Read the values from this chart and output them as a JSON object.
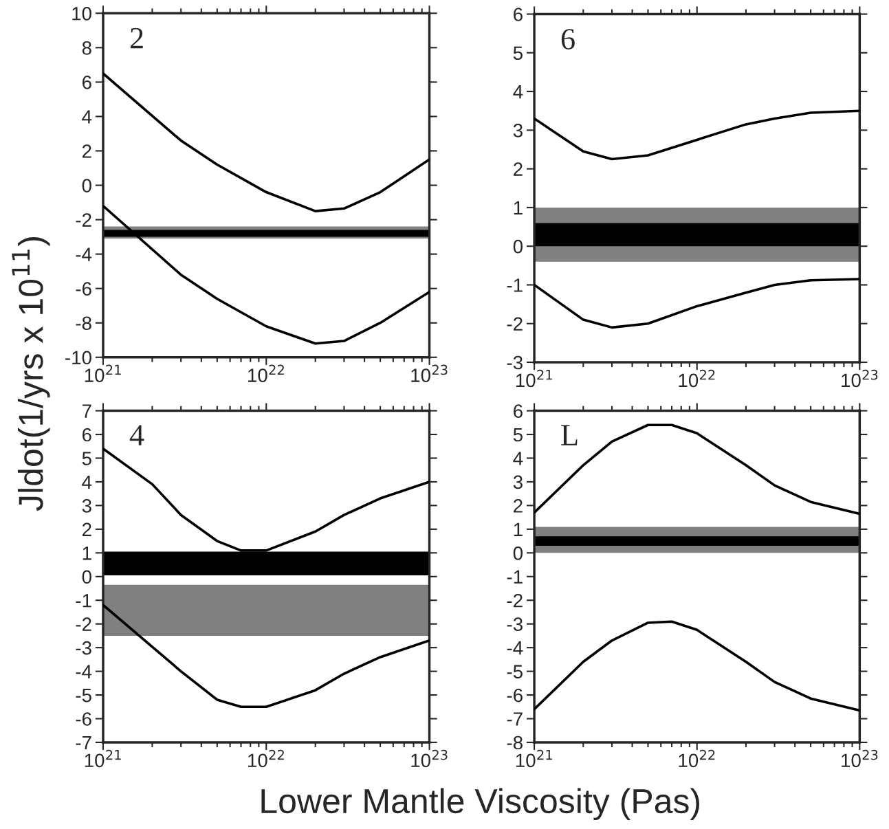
{
  "chart_data": [
    {
      "type": "line",
      "ylabel": "Jldot(1/yrs x 10$^{11}$)",
      "xlabel": "Lower Mantle Viscosity (Pas)",
      "annotations": [
        "2"
      ],
      "log": "x",
      "xlim": [
        1e+21,
        1e+23
      ],
      "xticks": [
        {
          "value": 1e+21,
          "label": "10$^{21}$"
        },
        {
          "value": 1e+22,
          "label": "10$^{22}$"
        },
        {
          "value": 1e+23,
          "label": "10$^{23}$"
        }
      ],
      "ylim": [
        -10,
        10
      ],
      "yticks": [
        -10,
        -8,
        -6,
        -4,
        -2,
        0,
        2,
        4,
        6,
        8,
        10
      ],
      "grid": false,
      "legend": false,
      "marker": "none",
      "line_style": "solid",
      "series": [
        {
          "color": "#000000",
          "x": [
            1e+21,
            3e+21,
            5e+21,
            1e+22,
            2e+22,
            3e+22,
            5e+22,
            1e+23
          ],
          "values": [
            6.5,
            2.6,
            1.2,
            -0.4,
            -1.5,
            -1.35,
            -0.4,
            1.5
          ]
        },
        {
          "color": "#000000",
          "x": [
            1e+21,
            3e+21,
            5e+21,
            1e+22,
            2e+22,
            3e+22,
            5e+22,
            1e+23
          ],
          "values": [
            -1.2,
            -5.2,
            -6.6,
            -8.2,
            -9.2,
            -9.05,
            -8.0,
            -6.2
          ]
        }
      ],
      "bands": [
        {
          "axis": "y",
          "from": -3.1,
          "to": -2.4,
          "color": "#808080"
        },
        {
          "axis": "y",
          "from": -3.0,
          "to": -2.6,
          "color": "#000000"
        }
      ]
    },
    {
      "type": "line",
      "annotations": [
        "6"
      ],
      "log": "x",
      "xlim": [
        1e+21,
        1e+23
      ],
      "xticks": [
        {
          "value": 1e+21,
          "label": "10$^{21}$"
        },
        {
          "value": 1e+22,
          "label": "10$^{22}$"
        },
        {
          "value": 1e+23,
          "label": "10$^{23}$"
        }
      ],
      "ylim": [
        -3,
        6
      ],
      "yticks": [
        -3,
        -2,
        -1,
        0,
        1,
        2,
        3,
        4,
        5,
        6
      ],
      "grid": false,
      "legend": false,
      "marker": "none",
      "line_style": "solid",
      "series": [
        {
          "color": "#000000",
          "x": [
            1e+21,
            2e+21,
            3e+21,
            5e+21,
            1e+22,
            2e+22,
            3e+22,
            5e+22,
            1e+23
          ],
          "values": [
            3.3,
            2.45,
            2.25,
            2.35,
            2.75,
            3.15,
            3.3,
            3.45,
            3.5
          ]
        },
        {
          "color": "#000000",
          "x": [
            1e+21,
            2e+21,
            3e+21,
            5e+21,
            1e+22,
            2e+22,
            3e+22,
            5e+22,
            1e+23
          ],
          "values": [
            -1.0,
            -1.9,
            -2.1,
            -2.0,
            -1.55,
            -1.2,
            -1.0,
            -0.88,
            -0.85
          ]
        }
      ],
      "bands": [
        {
          "axis": "y",
          "from": -0.4,
          "to": 1.0,
          "color": "#808080"
        },
        {
          "axis": "y",
          "from": 0.0,
          "to": 0.6,
          "color": "#000000"
        }
      ]
    },
    {
      "type": "line",
      "annotations": [
        "4"
      ],
      "log": "x",
      "xlim": [
        1e+21,
        1e+23
      ],
      "xticks": [
        {
          "value": 1e+21,
          "label": "10$^{21}$"
        },
        {
          "value": 1e+22,
          "label": "10$^{22}$"
        },
        {
          "value": 1e+23,
          "label": "10$^{23}$"
        }
      ],
      "ylim": [
        -7,
        7
      ],
      "yticks": [
        -7,
        -6,
        -5,
        -4,
        -3,
        -2,
        -1,
        0,
        1,
        2,
        3,
        4,
        5,
        6,
        7
      ],
      "grid": false,
      "legend": false,
      "marker": "none",
      "line_style": "solid",
      "series": [
        {
          "color": "#000000",
          "x": [
            1e+21,
            2e+21,
            3e+21,
            5e+21,
            7e+21,
            1e+22,
            2e+22,
            3e+22,
            5e+22,
            1e+23
          ],
          "values": [
            5.4,
            3.9,
            2.6,
            1.5,
            1.1,
            1.1,
            1.9,
            2.6,
            3.3,
            4.0
          ]
        },
        {
          "color": "#000000",
          "x": [
            1e+21,
            3e+21,
            5e+21,
            7e+21,
            1e+22,
            2e+22,
            3e+22,
            5e+22,
            1e+23
          ],
          "values": [
            -1.2,
            -4.0,
            -5.2,
            -5.5,
            -5.5,
            -4.8,
            -4.1,
            -3.4,
            -2.7
          ]
        }
      ],
      "bands": [
        {
          "axis": "y",
          "from": -2.5,
          "to": -0.35,
          "color": "#808080"
        },
        {
          "axis": "y",
          "from": 0.05,
          "to": 1.05,
          "color": "#000000"
        }
      ]
    },
    {
      "type": "line",
      "annotations": [
        "L"
      ],
      "log": "x",
      "xlim": [
        1e+21,
        1e+23
      ],
      "xticks": [
        {
          "value": 1e+21,
          "label": "10$^{21}$"
        },
        {
          "value": 1e+22,
          "label": "10$^{22}$"
        },
        {
          "value": 1e+23,
          "label": "10$^{23}$"
        }
      ],
      "ylim": [
        -8,
        6
      ],
      "yticks": [
        -8,
        -7,
        -6,
        -5,
        -4,
        -3,
        -2,
        -1,
        0,
        1,
        2,
        3,
        4,
        5,
        6
      ],
      "grid": false,
      "legend": false,
      "marker": "none",
      "line_style": "solid",
      "series": [
        {
          "color": "#000000",
          "x": [
            1e+21,
            2e+21,
            3e+21,
            5e+21,
            7e+21,
            1e+22,
            2e+22,
            3e+22,
            5e+22,
            1e+23
          ],
          "values": [
            1.7,
            3.7,
            4.7,
            5.4,
            5.4,
            5.05,
            3.7,
            2.85,
            2.15,
            1.65
          ]
        },
        {
          "color": "#000000",
          "x": [
            1e+21,
            2e+21,
            3e+21,
            5e+21,
            7e+21,
            1e+22,
            2e+22,
            3e+22,
            5e+22,
            1e+23
          ],
          "values": [
            -6.6,
            -4.6,
            -3.7,
            -2.95,
            -2.9,
            -3.25,
            -4.6,
            -5.45,
            -6.15,
            -6.65
          ]
        }
      ],
      "bands": [
        {
          "axis": "y",
          "from": 0.0,
          "to": 1.1,
          "color": "#808080"
        },
        {
          "axis": "y",
          "from": 0.3,
          "to": 0.7,
          "color": "#000000"
        }
      ]
    }
  ]
}
